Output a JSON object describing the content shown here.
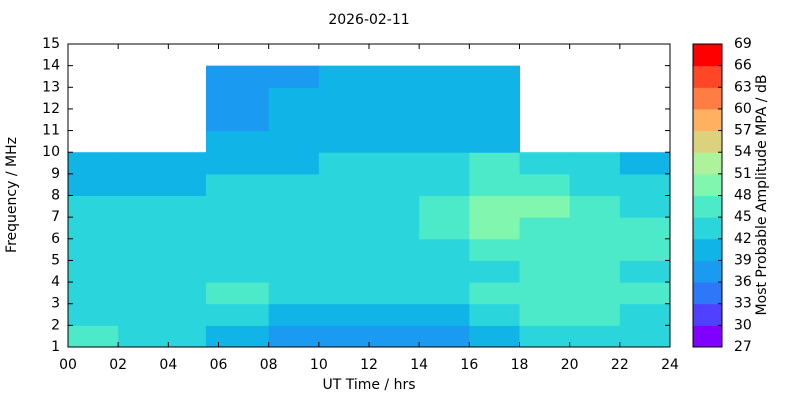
{
  "chart_data": {
    "type": "heatmap",
    "title": "2026-02-11",
    "x_label": "UT Time / hrs",
    "y_label": "Frequency / MHz",
    "colorbar_label": "Most Probable Amplitude MPA / dB",
    "x_edges": [
      0,
      2,
      4,
      5.5,
      8,
      10,
      12,
      14,
      16,
      18,
      20,
      22,
      24
    ],
    "y_edges": [
      1,
      2,
      3,
      4,
      5,
      6,
      7,
      8,
      9,
      10,
      11,
      12,
      13,
      14
    ],
    "values": [
      [
        45,
        43,
        42,
        40,
        38,
        38,
        38,
        38,
        41,
        44,
        44,
        44
      ],
      [
        44,
        43,
        42,
        42,
        40,
        40,
        40,
        40,
        43,
        45,
        45,
        44
      ],
      [
        44,
        43,
        43,
        45,
        42,
        42,
        42,
        42,
        45,
        46,
        46,
        45
      ],
      [
        43,
        42,
        42,
        44,
        42,
        42,
        42,
        42,
        44,
        45,
        45,
        44
      ],
      [
        42,
        42,
        42,
        43,
        42,
        42,
        42,
        43,
        45,
        46,
        46,
        45
      ],
      [
        42,
        42,
        42,
        44,
        43,
        43,
        44,
        46,
        48,
        47,
        46,
        45
      ],
      [
        42,
        42,
        42,
        43,
        43,
        44,
        44,
        45,
        50,
        49,
        46,
        44
      ],
      [
        41,
        41,
        41,
        42,
        42,
        42,
        43,
        44,
        46,
        45,
        43,
        42
      ],
      [
        40,
        40,
        40,
        41,
        41,
        42,
        42,
        44,
        45,
        43,
        42,
        41
      ],
      [
        null,
        null,
        null,
        39,
        40,
        41,
        41,
        41,
        41,
        null,
        null,
        null
      ],
      [
        null,
        null,
        null,
        38,
        40,
        41,
        41,
        41,
        41,
        null,
        null,
        null
      ],
      [
        null,
        null,
        null,
        38,
        40,
        40,
        41,
        41,
        40,
        null,
        null,
        null
      ],
      [
        null,
        null,
        null,
        36,
        38,
        39,
        40,
        40,
        39,
        null,
        null,
        null
      ]
    ],
    "xlim": [
      0,
      24
    ],
    "xticks": [
      {
        "value": 0,
        "label": "00"
      },
      {
        "value": 2,
        "label": "02"
      },
      {
        "value": 4,
        "label": "04"
      },
      {
        "value": 6,
        "label": "06"
      },
      {
        "value": 8,
        "label": "08"
      },
      10,
      12,
      14,
      16,
      18,
      20,
      22,
      24
    ],
    "ylim": [
      1,
      15
    ],
    "yticks": [
      1,
      2,
      3,
      4,
      5,
      6,
      7,
      8,
      9,
      10,
      11,
      12,
      13,
      14,
      15
    ],
    "clim": [
      27,
      69
    ],
    "cticks": [
      27,
      30,
      33,
      36,
      39,
      42,
      45,
      48,
      51,
      54,
      57,
      60,
      63,
      66,
      69
    ],
    "colors": [
      "#7f00ff",
      "#5040ff",
      "#2d78f8",
      "#1a9af0",
      "#10b4e6",
      "#2ad6dc",
      "#4ceac8",
      "#80f6ae",
      "#aef29c",
      "#dcd27e",
      "#ffb060",
      "#ff7c44",
      "#ff4626",
      "#ff0000"
    ]
  }
}
